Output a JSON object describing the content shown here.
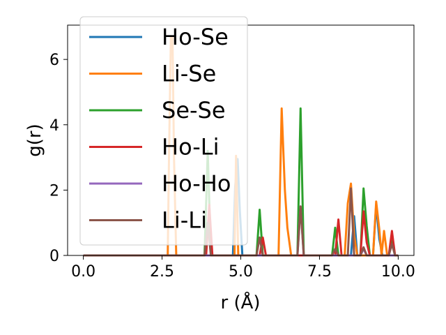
{
  "chart_data": {
    "type": "line",
    "title": "",
    "xlabel": "r (Å)",
    "ylabel": "g(r)",
    "xlim": [
      -0.5,
      10.5
    ],
    "ylim": [
      0,
      7.05
    ],
    "xticks": [
      0.0,
      2.5,
      5.0,
      7.5,
      10.0
    ],
    "xtick_labels": [
      "0.0",
      "2.5",
      "5.0",
      "7.5",
      "10.0"
    ],
    "yticks": [
      0,
      2,
      4,
      6
    ],
    "ytick_labels": [
      "0",
      "2",
      "4",
      "6"
    ],
    "grid": false,
    "legend_position": "top-left",
    "series": [
      {
        "name": "Ho-Se",
        "color": "#1f77b4",
        "points": [
          [
            0,
            0
          ],
          [
            4.75,
            0
          ],
          [
            4.82,
            2.1
          ],
          [
            4.9,
            2.95
          ],
          [
            4.97,
            1.4
          ],
          [
            5.05,
            0
          ],
          [
            8.5,
            0
          ],
          [
            8.6,
            1.2
          ],
          [
            8.7,
            0
          ],
          [
            9.2,
            0
          ],
          [
            9.3,
            1.55
          ],
          [
            9.4,
            0.5
          ],
          [
            9.5,
            0
          ],
          [
            10,
            0
          ]
        ]
      },
      {
        "name": "Li-Se",
        "color": "#ff7f0e",
        "points": [
          [
            0,
            0
          ],
          [
            2.68,
            0
          ],
          [
            2.72,
            3.0
          ],
          [
            2.78,
            6.7
          ],
          [
            2.83,
            6.7
          ],
          [
            2.88,
            3.0
          ],
          [
            2.95,
            0
          ],
          [
            4.8,
            0
          ],
          [
            4.85,
            3.05
          ],
          [
            4.92,
            0
          ],
          [
            6.2,
            0
          ],
          [
            6.3,
            4.5
          ],
          [
            6.4,
            2.0
          ],
          [
            6.48,
            0.85
          ],
          [
            6.6,
            0
          ],
          [
            8.3,
            0
          ],
          [
            8.4,
            1.6
          ],
          [
            8.5,
            2.2
          ],
          [
            8.6,
            0.6
          ],
          [
            8.7,
            0
          ],
          [
            9.2,
            0
          ],
          [
            9.3,
            1.65
          ],
          [
            9.4,
            0.8
          ],
          [
            9.47,
            0
          ],
          [
            9.55,
            0.75
          ],
          [
            9.65,
            0
          ],
          [
            10,
            0
          ]
        ]
      },
      {
        "name": "Se-Se",
        "color": "#2ca02c",
        "points": [
          [
            0,
            0
          ],
          [
            3.85,
            0
          ],
          [
            3.95,
            3.2
          ],
          [
            4.05,
            0
          ],
          [
            5.5,
            0
          ],
          [
            5.6,
            1.4
          ],
          [
            5.7,
            0
          ],
          [
            6.8,
            0
          ],
          [
            6.9,
            4.5
          ],
          [
            7.0,
            0
          ],
          [
            7.9,
            0
          ],
          [
            8.0,
            0.85
          ],
          [
            8.1,
            0
          ],
          [
            8.8,
            0
          ],
          [
            8.9,
            2.05
          ],
          [
            9.0,
            0.9
          ],
          [
            9.1,
            0
          ],
          [
            9.7,
            0
          ],
          [
            9.8,
            0.45
          ],
          [
            9.9,
            0
          ],
          [
            10,
            0
          ]
        ]
      },
      {
        "name": "Ho-Li",
        "color": "#d62728",
        "points": [
          [
            0,
            0
          ],
          [
            3.9,
            0
          ],
          [
            4.0,
            1.55
          ],
          [
            4.1,
            0
          ],
          [
            5.6,
            0
          ],
          [
            5.7,
            0.55
          ],
          [
            5.8,
            0
          ],
          [
            8.0,
            0
          ],
          [
            8.1,
            1.1
          ],
          [
            8.2,
            0
          ],
          [
            8.8,
            0
          ],
          [
            8.9,
            1.35
          ],
          [
            9.0,
            0.4
          ],
          [
            9.1,
            0
          ],
          [
            9.7,
            0
          ],
          [
            9.8,
            0.75
          ],
          [
            9.9,
            0
          ],
          [
            10,
            0
          ]
        ]
      },
      {
        "name": "Ho-Ho",
        "color": "#9467bd",
        "points": [
          [
            0,
            0
          ],
          [
            6.8,
            0
          ],
          [
            6.9,
            1.5
          ],
          [
            7.0,
            0
          ],
          [
            8.8,
            0
          ],
          [
            8.9,
            0.2
          ],
          [
            9.0,
            0
          ],
          [
            10,
            0
          ]
        ]
      },
      {
        "name": "Li-Li",
        "color": "#8c564b",
        "points": [
          [
            0,
            0
          ],
          [
            3.85,
            0
          ],
          [
            3.95,
            1.0
          ],
          [
            4.05,
            0
          ],
          [
            5.5,
            0
          ],
          [
            5.6,
            0.55
          ],
          [
            5.7,
            0
          ],
          [
            6.8,
            0
          ],
          [
            6.9,
            1.5
          ],
          [
            7.0,
            0
          ],
          [
            7.9,
            0
          ],
          [
            8.0,
            0.2
          ],
          [
            8.1,
            0
          ],
          [
            8.4,
            0
          ],
          [
            8.5,
            2.05
          ],
          [
            8.6,
            0
          ],
          [
            8.8,
            0
          ],
          [
            8.9,
            0.25
          ],
          [
            9.0,
            0
          ],
          [
            9.7,
            0
          ],
          [
            9.8,
            0.35
          ],
          [
            9.9,
            0
          ],
          [
            10,
            0
          ]
        ]
      }
    ]
  }
}
